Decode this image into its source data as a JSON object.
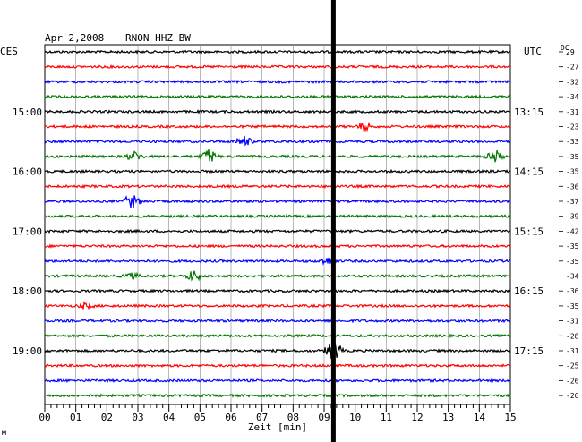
{
  "header": {
    "date": "Apr 2,2008",
    "station": "RNON HHZ BW"
  },
  "labels": {
    "left_tz": "CES",
    "right_tz": "UTC",
    "dc": "DC",
    "xlabel": "Zeit [min]",
    "corner_mark": "м"
  },
  "chart_data": {
    "type": "line",
    "title": "Apr 2,2008 RNON HHZ BW",
    "xlabel": "Zeit [min]",
    "xlim": [
      0,
      15
    ],
    "x_ticks": [
      "00",
      "01",
      "02",
      "03",
      "04",
      "05",
      "06",
      "07",
      "08",
      "09",
      "10",
      "11",
      "12",
      "13",
      "14",
      "15"
    ],
    "trace_count": 24,
    "trace_colors": [
      "#000000",
      "#ff0000",
      "#0000ff",
      "#007700"
    ],
    "left_time_labels": [
      {
        "trace": 4,
        "label": "15:00"
      },
      {
        "trace": 8,
        "label": "16:00"
      },
      {
        "trace": 12,
        "label": "17:00"
      },
      {
        "trace": 16,
        "label": "18:00"
      },
      {
        "trace": 20,
        "label": "19:00"
      }
    ],
    "right_time_labels": [
      {
        "trace": 4,
        "label": "13:15"
      },
      {
        "trace": 8,
        "label": "14:15"
      },
      {
        "trace": 12,
        "label": "15:15"
      },
      {
        "trace": 16,
        "label": "16:15"
      },
      {
        "trace": 20,
        "label": "17:15"
      }
    ],
    "dc_offsets": [
      "29",
      "-27",
      "-32",
      "-34",
      "-31",
      "-23",
      "-33",
      "-35",
      "-35",
      "-36",
      "-37",
      "-39",
      "-42",
      "-35",
      "-35",
      "-34",
      "-36",
      "-35",
      "-31",
      "-28",
      "-31",
      "-25",
      "-26",
      "-26"
    ],
    "events": [
      {
        "trace": 5,
        "minute": 10.3,
        "amplitude": 4
      },
      {
        "trace": 6,
        "minute": 6.4,
        "amplitude": 6
      },
      {
        "trace": 7,
        "minute": 2.9,
        "amplitude": 5
      },
      {
        "trace": 7,
        "minute": 5.3,
        "amplitude": 8
      },
      {
        "trace": 7,
        "minute": 14.5,
        "amplitude": 7
      },
      {
        "trace": 10,
        "minute": 2.8,
        "amplitude": 8
      },
      {
        "trace": 14,
        "minute": 9.1,
        "amplitude": 4
      },
      {
        "trace": 15,
        "minute": 4.8,
        "amplitude": 6
      },
      {
        "trace": 15,
        "minute": 2.8,
        "amplitude": 3
      },
      {
        "trace": 17,
        "minute": 1.3,
        "amplitude": 3
      },
      {
        "trace": 20,
        "minute": 9.3,
        "amplitude": 12
      }
    ],
    "marker_minute": 9.3,
    "grid": true
  }
}
